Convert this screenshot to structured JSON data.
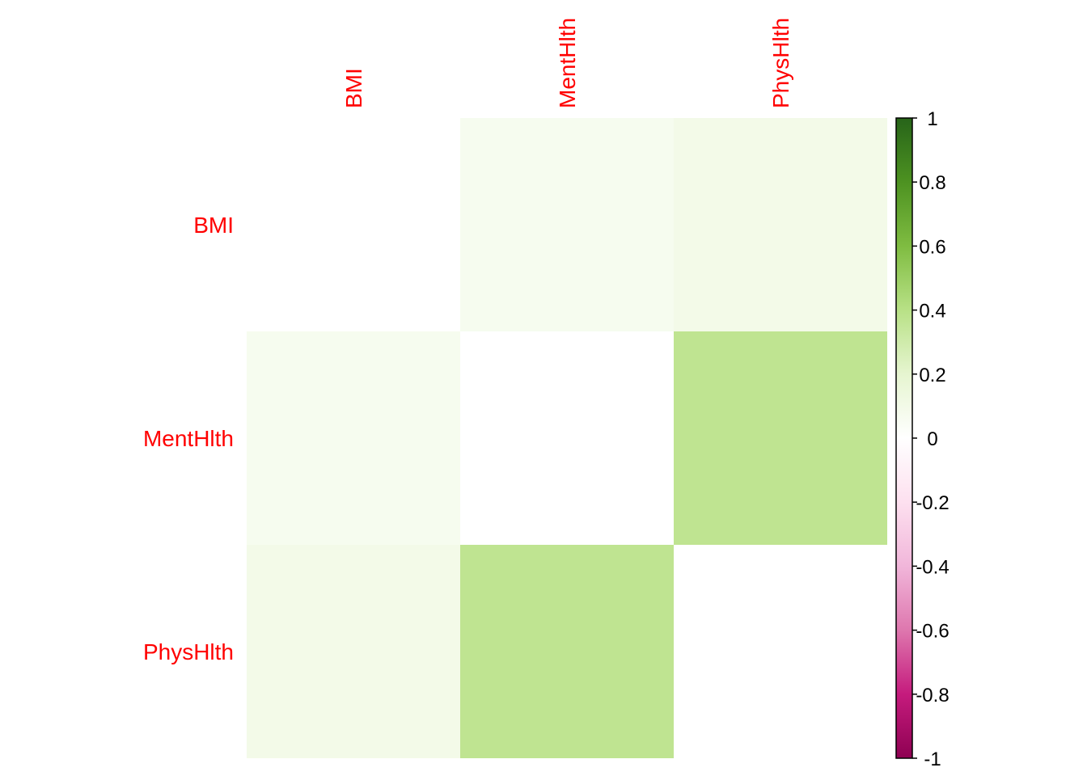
{
  "chart_data": {
    "type": "heatmap",
    "title": "",
    "variables": [
      "BMI",
      "MentHlth",
      "PhysHlth"
    ],
    "row_labels": [
      "BMI",
      "MentHlth",
      "PhysHlth"
    ],
    "col_labels": [
      "BMI",
      "MentHlth",
      "PhysHlth"
    ],
    "values": [
      [
        0,
        0.07,
        0.1
      ],
      [
        0.07,
        0,
        0.37
      ],
      [
        0.1,
        0.37,
        0
      ]
    ],
    "colorbar": {
      "range": [
        -1,
        1
      ],
      "ticks": [
        "1",
        "0.8",
        "0.6",
        "0.4",
        "0.2",
        "0",
        "-0.2",
        "-0.4",
        "-0.6",
        "-0.8",
        "-1"
      ],
      "tick_values": [
        1,
        0.8,
        0.6,
        0.4,
        0.2,
        0,
        -0.2,
        -0.4,
        -0.6,
        -0.8,
        -1
      ],
      "palette": [
        "#8E0152",
        "#C51B7D",
        "#DE77AE",
        "#F1B6DA",
        "#FDE0EF",
        "#FFFFFF",
        "#E6F5D0",
        "#B8E186",
        "#7FBC41",
        "#4D9221",
        "#276419"
      ],
      "placement": "right"
    },
    "label_color": "#FF0000"
  }
}
